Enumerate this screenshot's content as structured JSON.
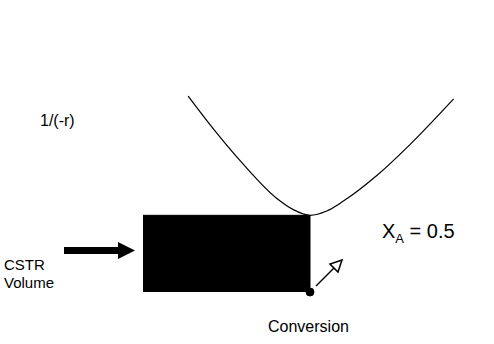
{
  "chart_data": {
    "type": "line",
    "x_label": "Conversion",
    "y_label": "1/(-r)",
    "x": [
      0.135,
      0.2,
      0.3,
      0.4,
      0.45,
      0.5,
      0.55,
      0.6,
      0.7,
      0.8,
      0.93
    ],
    "values": [
      6.9,
      5.9,
      4.5,
      3.3,
      2.9,
      2.7,
      2.85,
      3.2,
      4.1,
      5.2,
      6.8
    ],
    "color": "#000000",
    "xlim": [
      0,
      1
    ],
    "ylim": [
      0,
      10
    ],
    "tick_labels": false,
    "grid": false,
    "marker": "none",
    "cstr": {
      "label": "CSTR Volume",
      "x_start": 0,
      "x_end": 0.5,
      "height": 2.7,
      "color": "#000000"
    },
    "conversion_marker": {
      "x": 0.5,
      "label": "X",
      "subscript": "A",
      "text": "= 0.5"
    }
  }
}
